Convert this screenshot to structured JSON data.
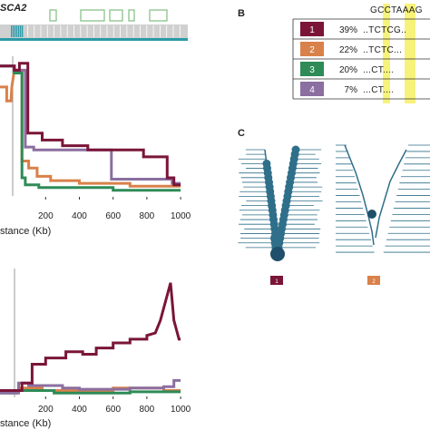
{
  "figure": {
    "gene_label": "SCA2",
    "panel_b_letter": "B",
    "panel_c_letter": "C",
    "reference_sequence": "GCCTAAAG",
    "colors": {
      "hap1": "#7a1538",
      "hap2": "#d9814a",
      "hap3": "#2e8b57",
      "hap4": "#8b6fa0",
      "tree": "#2f6f8a",
      "highlight": "#f7f27a",
      "grey_bar": "#d0d0d0",
      "gene_box": "#7fbf7f",
      "exon": "#2a9aa8"
    }
  },
  "haplotype_table": {
    "rows": [
      {
        "id": "1",
        "percent": "39%",
        "sequence": "..TCTCG.."
      },
      {
        "id": "2",
        "percent": "22%",
        "sequence": "..TCTC..."
      },
      {
        "id": "3",
        "percent": "20%",
        "sequence": "...CT...."
      },
      {
        "id": "4",
        "percent": "7%",
        "sequence": "...CT...."
      }
    ]
  },
  "tree_labels": [
    "1",
    "2"
  ],
  "chart_data": [
    {
      "type": "line",
      "xlabel": "stance (Kb)",
      "ylabel": "",
      "xlim": [
        -70,
        1010
      ],
      "ylim": [
        0,
        1
      ],
      "x_ticks": [
        "200",
        "400",
        "600",
        "800",
        "1000"
      ],
      "series": [
        {
          "points": [
            [
              -70,
              0.93
            ],
            [
              0,
              0.93
            ],
            [
              15,
              0.93
            ],
            [
              15,
              0.9
            ],
            [
              45,
              0.9
            ],
            [
              45,
              0.95
            ],
            [
              95,
              0.95
            ],
            [
              95,
              0.45
            ],
            [
              180,
              0.45
            ],
            [
              180,
              0.4
            ],
            [
              300,
              0.4
            ],
            [
              300,
              0.36
            ],
            [
              450,
              0.36
            ],
            [
              450,
              0.33
            ],
            [
              780,
              0.33
            ],
            [
              780,
              0.28
            ],
            [
              920,
              0.28
            ],
            [
              920,
              0.13
            ],
            [
              960,
              0.13
            ],
            [
              960,
              0.08
            ],
            [
              1000,
              0.08
            ]
          ]
        },
        {
          "points": [
            [
              -70,
              0.78
            ],
            [
              -30,
              0.78
            ],
            [
              -30,
              0.68
            ],
            [
              -5,
              0.68
            ],
            [
              0,
              0.78
            ],
            [
              15,
              0.9
            ],
            [
              60,
              0.9
            ],
            [
              60,
              0.25
            ],
            [
              100,
              0.25
            ],
            [
              100,
              0.2
            ],
            [
              150,
              0.2
            ],
            [
              150,
              0.14
            ],
            [
              230,
              0.14
            ],
            [
              230,
              0.11
            ],
            [
              400,
              0.11
            ],
            [
              400,
              0.09
            ],
            [
              700,
              0.09
            ],
            [
              700,
              0.07
            ],
            [
              1000,
              0.07
            ]
          ]
        },
        {
          "points": [
            [
              -70,
              0.93
            ],
            [
              15,
              0.93
            ],
            [
              15,
              0.88
            ],
            [
              60,
              0.88
            ],
            [
              60,
              0.13
            ],
            [
              80,
              0.13
            ],
            [
              80,
              0.08
            ],
            [
              160,
              0.08
            ],
            [
              160,
              0.06
            ],
            [
              600,
              0.06
            ],
            [
              600,
              0.04
            ],
            [
              1000,
              0.04
            ]
          ]
        },
        {
          "points": [
            [
              -70,
              0.93
            ],
            [
              15,
              0.93
            ],
            [
              15,
              0.9
            ],
            [
              80,
              0.9
            ],
            [
              80,
              0.35
            ],
            [
              130,
              0.35
            ],
            [
              130,
              0.33
            ],
            [
              590,
              0.33
            ],
            [
              590,
              0.12
            ],
            [
              950,
              0.12
            ],
            [
              950,
              0.09
            ],
            [
              1000,
              0.09
            ]
          ]
        }
      ]
    },
    {
      "type": "line",
      "xlabel": "stance (Kb)",
      "ylabel": "",
      "xlim": [
        -70,
        1010
      ],
      "ylim": [
        0,
        1
      ],
      "x_ticks": [
        "200",
        "400",
        "600",
        "800",
        "1000"
      ],
      "series": [
        {
          "points": [
            [
              -70,
              0.04
            ],
            [
              60,
              0.04
            ],
            [
              60,
              0.1
            ],
            [
              120,
              0.1
            ],
            [
              120,
              0.25
            ],
            [
              200,
              0.25
            ],
            [
              200,
              0.3
            ],
            [
              320,
              0.3
            ],
            [
              320,
              0.35
            ],
            [
              420,
              0.35
            ],
            [
              420,
              0.33
            ],
            [
              500,
              0.33
            ],
            [
              500,
              0.38
            ],
            [
              600,
              0.38
            ],
            [
              600,
              0.42
            ],
            [
              700,
              0.42
            ],
            [
              700,
              0.45
            ],
            [
              800,
              0.45
            ],
            [
              800,
              0.48
            ],
            [
              850,
              0.5
            ],
            [
              880,
              0.6
            ],
            [
              910,
              0.75
            ],
            [
              940,
              0.9
            ],
            [
              960,
              0.6
            ],
            [
              970,
              0.55
            ],
            [
              990,
              0.45
            ],
            [
              1000,
              0.45
            ]
          ]
        },
        {
          "points": [
            [
              -70,
              0.03
            ],
            [
              40,
              0.03
            ],
            [
              40,
              0.06
            ],
            [
              180,
              0.06
            ],
            [
              180,
              0.04
            ],
            [
              600,
              0.04
            ],
            [
              600,
              0.06
            ],
            [
              900,
              0.06
            ],
            [
              900,
              0.04
            ],
            [
              1000,
              0.04
            ]
          ]
        },
        {
          "points": [
            [
              -70,
              0.02
            ],
            [
              30,
              0.02
            ],
            [
              30,
              0.04
            ],
            [
              250,
              0.04
            ],
            [
              250,
              0.02
            ],
            [
              700,
              0.02
            ],
            [
              700,
              0.03
            ],
            [
              1000,
              0.03
            ]
          ]
        },
        {
          "points": [
            [
              -70,
              0.02
            ],
            [
              40,
              0.02
            ],
            [
              40,
              0.1
            ],
            [
              100,
              0.1
            ],
            [
              100,
              0.08
            ],
            [
              300,
              0.08
            ],
            [
              300,
              0.06
            ],
            [
              400,
              0.06
            ],
            [
              400,
              0.05
            ],
            [
              700,
              0.05
            ],
            [
              700,
              0.06
            ],
            [
              900,
              0.06
            ],
            [
              900,
              0.07
            ],
            [
              960,
              0.07
            ],
            [
              960,
              0.12
            ],
            [
              1000,
              0.12
            ]
          ]
        }
      ]
    }
  ]
}
